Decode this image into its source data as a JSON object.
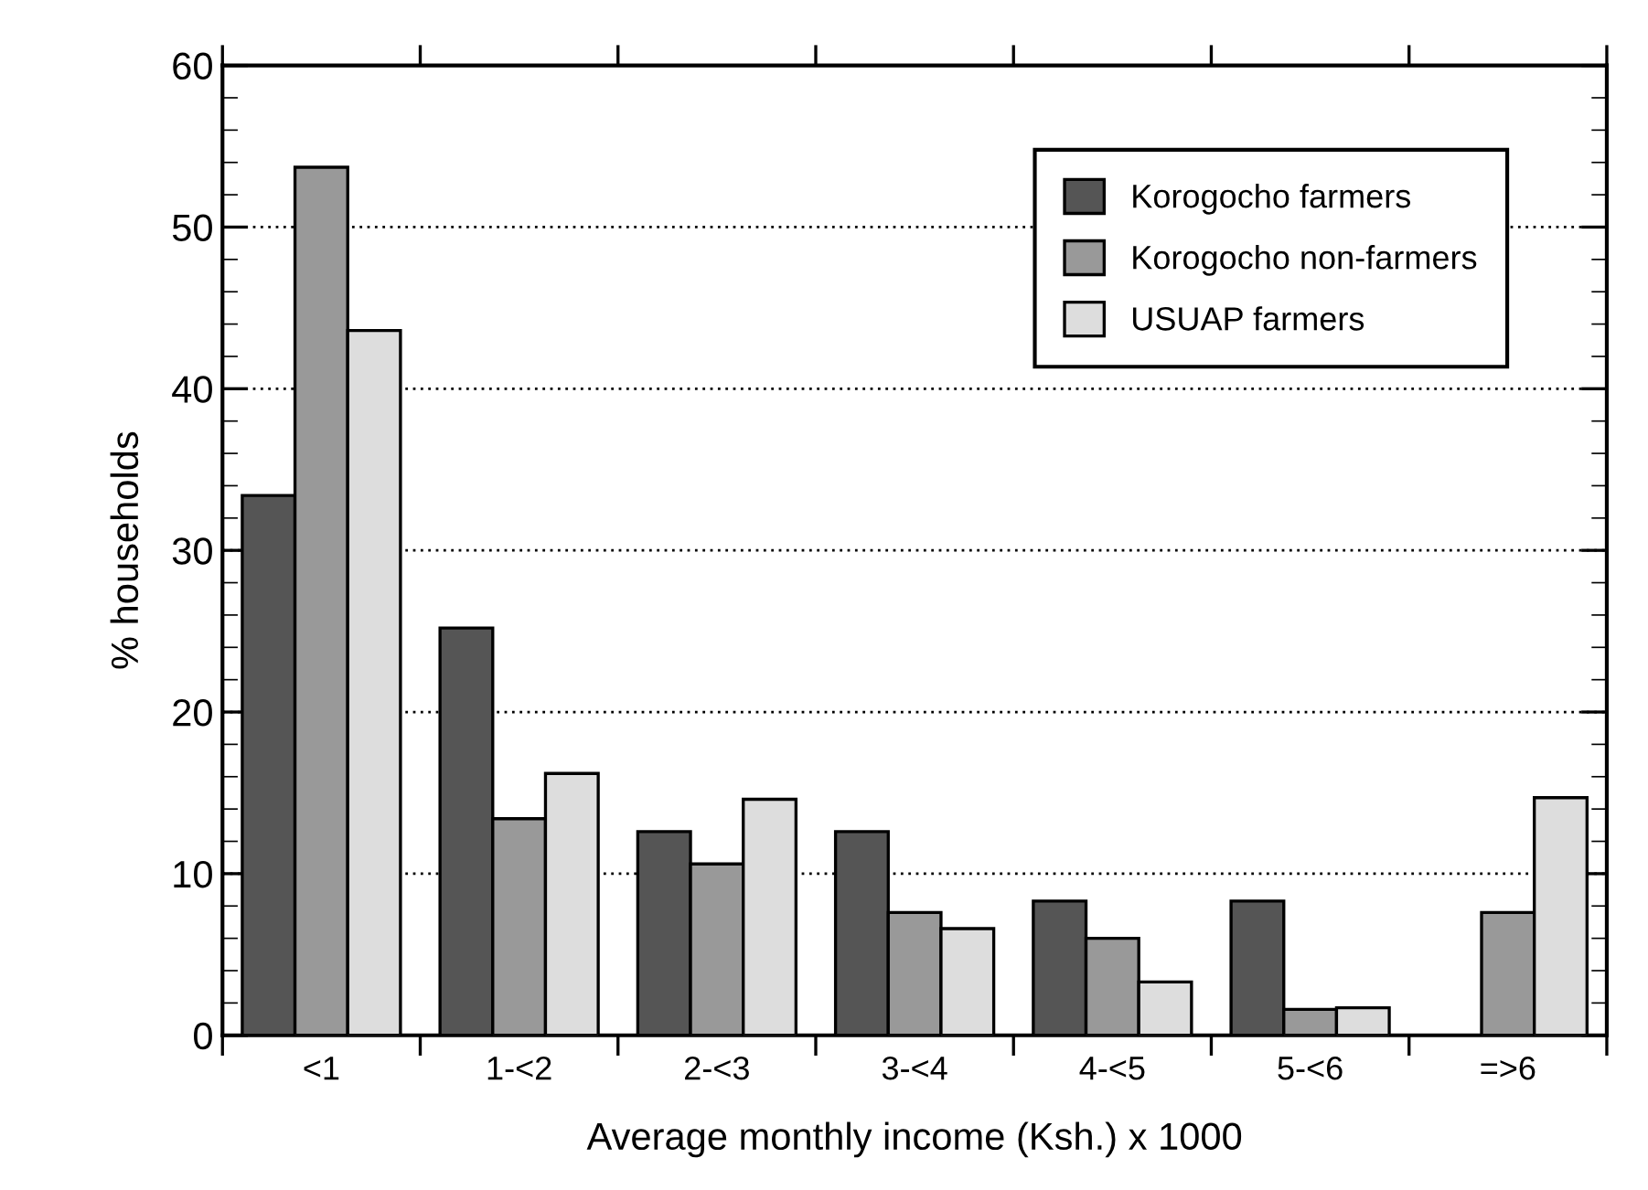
{
  "chart_data": {
    "type": "bar",
    "xlabel": "Average monthly income (Ksh.) x 1000",
    "ylabel": "% households",
    "categories": [
      "<1",
      "1-<2",
      "2-<3",
      "3-<4",
      "4-<5",
      "5-<6",
      "=>6"
    ],
    "series": [
      {
        "name": "Korogocho farmers",
        "color": "#555555",
        "values": [
          33.4,
          25.2,
          12.6,
          12.6,
          8.3,
          8.3,
          null
        ]
      },
      {
        "name": "Korogocho non-farmers",
        "color": "#999999",
        "values": [
          53.7,
          13.4,
          10.6,
          7.6,
          6.0,
          1.6,
          7.6
        ]
      },
      {
        "name": "USUAP farmers",
        "color": "#dddddd",
        "values": [
          43.6,
          16.2,
          14.6,
          6.6,
          3.3,
          1.7,
          14.7
        ]
      }
    ],
    "ylim": [
      0,
      60
    ],
    "yticks": [
      0,
      10,
      20,
      30,
      40,
      50,
      60
    ],
    "grid": "y",
    "legend": "top right"
  }
}
